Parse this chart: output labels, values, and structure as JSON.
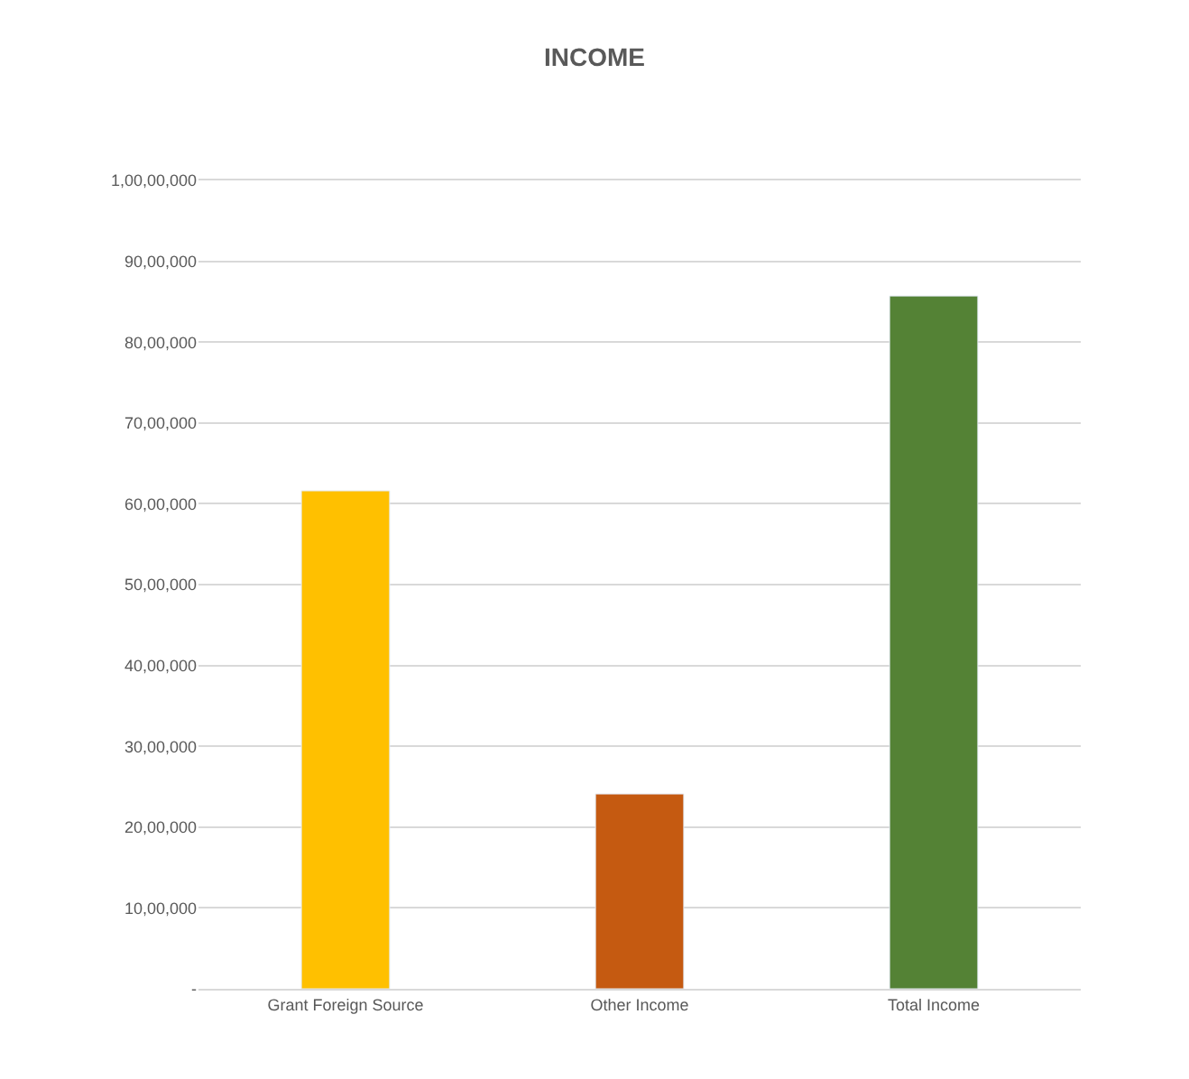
{
  "chart_data": {
    "type": "bar",
    "title": "INCOME",
    "categories": [
      "Grant Foreign Source",
      "Other Income",
      "Total Income"
    ],
    "values": [
      6160000,
      2410000,
      8570000
    ],
    "colors": [
      "#ffc000",
      "#c55a11",
      "#548235"
    ],
    "ylim": [
      0,
      10000000
    ],
    "yticks": [
      {
        "value": 0,
        "label": "-"
      },
      {
        "value": 1000000,
        "label": "10,00,000"
      },
      {
        "value": 2000000,
        "label": "20,00,000"
      },
      {
        "value": 3000000,
        "label": "30,00,000"
      },
      {
        "value": 4000000,
        "label": "40,00,000"
      },
      {
        "value": 5000000,
        "label": "50,00,000"
      },
      {
        "value": 6000000,
        "label": "60,00,000"
      },
      {
        "value": 7000000,
        "label": "70,00,000"
      },
      {
        "value": 8000000,
        "label": "80,00,000"
      },
      {
        "value": 9000000,
        "label": "90,00,000"
      },
      {
        "value": 10000000,
        "label": "1,00,00,000"
      }
    ],
    "grid": "y"
  }
}
